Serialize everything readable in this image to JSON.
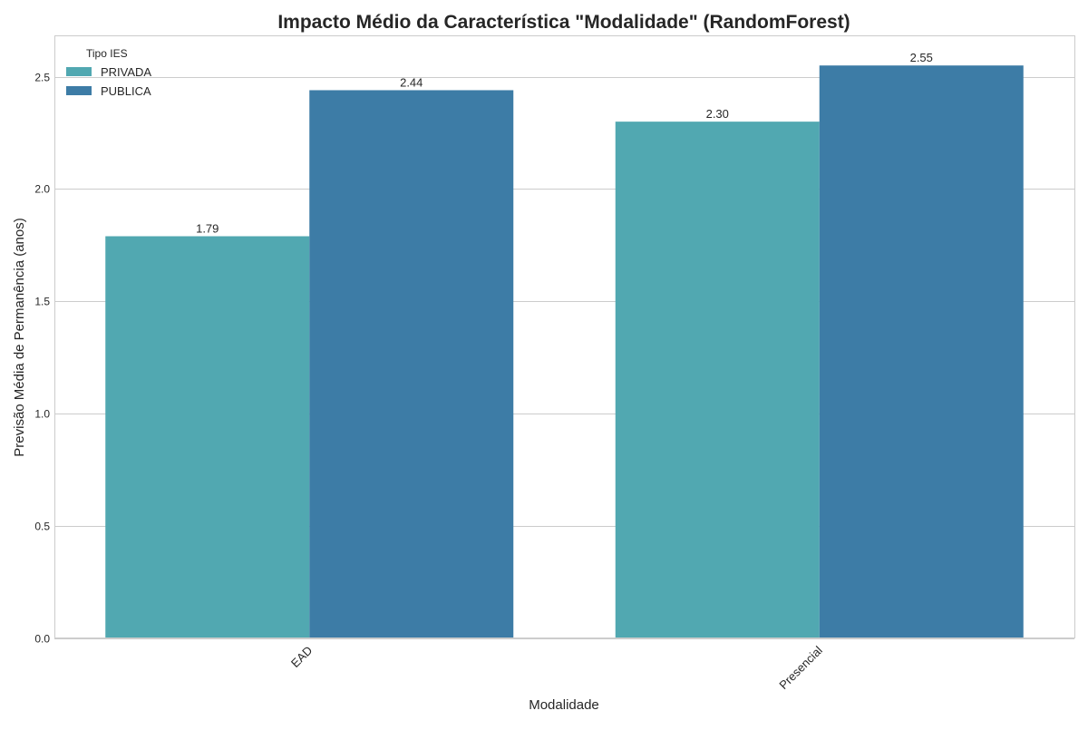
{
  "chart_data": {
    "type": "bar",
    "title": "Impacto Médio da Característica \"Modalidade\" (RandomForest)",
    "xlabel": "Modalidade",
    "ylabel": "Previsão Média de Permanência (anos)",
    "categories": [
      "EAD",
      "Presencial"
    ],
    "series": [
      {
        "name": "PRIVADA",
        "values": [
          1.79,
          2.3
        ],
        "color": "#51a8b1"
      },
      {
        "name": "PUBLICA",
        "values": [
          2.44,
          2.55
        ],
        "color": "#3d7ca6"
      }
    ],
    "data_labels": [
      [
        "1.79",
        "2.30"
      ],
      [
        "2.44",
        "2.55"
      ]
    ],
    "ylim": [
      0,
      2.68
    ],
    "yticks": [
      "0.0",
      "0.5",
      "1.0",
      "1.5",
      "2.0",
      "2.5"
    ],
    "grid": "horizontal",
    "legend": {
      "title": "Tipo IES",
      "placement": "top-left"
    }
  }
}
